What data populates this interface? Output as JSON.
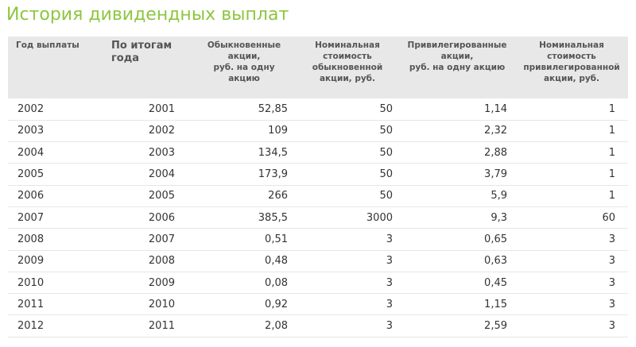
{
  "title": "История дивидендных выплат",
  "table": {
    "headers": [
      "Год выплаты",
      "По итогам года",
      "Обыкновенные акции, руб. на одну акцию",
      "Номинальная стоимость обыкновенной акции, руб.",
      "Привилегированные акции, руб. на одну акцию",
      "Номинальная стоимость привилегированной акции, руб."
    ],
    "header_lines": [
      [
        "Год выплаты"
      ],
      [
        "По итогам",
        "года"
      ],
      [
        "Обыкновенные",
        "акции,",
        "руб. на одну",
        "акцию"
      ],
      [
        "Номинальная",
        "стоимость",
        "обыкновенной",
        "акции, руб."
      ],
      [
        "Привилегированные",
        "акции,",
        "руб. на одну акцию"
      ],
      [
        "Номинальная",
        "стоимость",
        "привилегированной",
        "акции, руб."
      ]
    ],
    "rows": [
      [
        "2002",
        "2001",
        "52,85",
        "50",
        "1,14",
        "1"
      ],
      [
        "2003",
        "2002",
        "109",
        "50",
        "2,32",
        "1"
      ],
      [
        "2004",
        "2003",
        "134,5",
        "50",
        "2,88",
        "1"
      ],
      [
        "2005",
        "2004",
        "173,9",
        "50",
        "3,79",
        "1"
      ],
      [
        "2006",
        "2005",
        "266",
        "50",
        "5,9",
        "1"
      ],
      [
        "2007",
        "2006",
        "385,5",
        "3000",
        "9,3",
        "60"
      ],
      [
        "2008",
        "2007",
        "0,51",
        "3",
        "0,65",
        "3"
      ],
      [
        "2009",
        "2008",
        "0,48",
        "3",
        "0,63",
        "3"
      ],
      [
        "2010",
        "2009",
        "0,08",
        "3",
        "0,45",
        "3"
      ],
      [
        "2011",
        "2010",
        "0,92",
        "3",
        "1,15",
        "3"
      ],
      [
        "2012",
        "2011",
        "2,08",
        "3",
        "2,59",
        "3"
      ]
    ]
  },
  "colors": {
    "title": "#8dc63f",
    "header_bg": "#e8e8e8",
    "row_border": "#e6e6e6",
    "text": "#333333"
  }
}
